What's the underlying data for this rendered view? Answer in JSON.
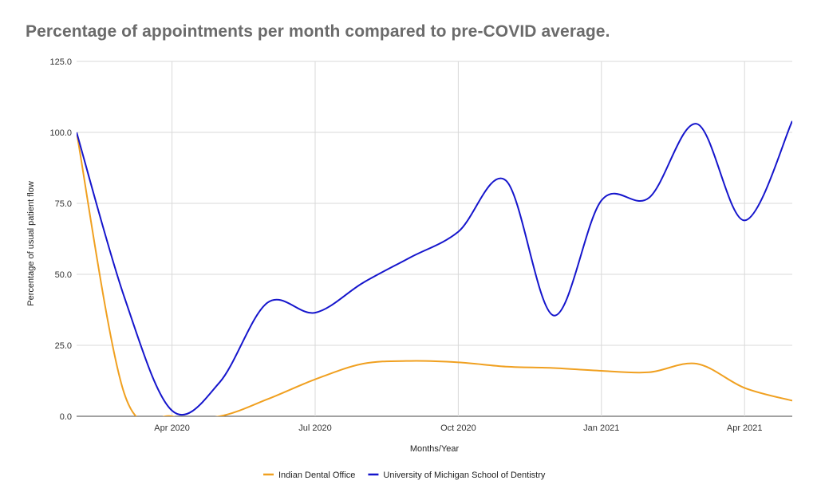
{
  "chart_data": {
    "type": "line",
    "title": "Percentage of appointments per month compared to pre-COVID average.",
    "xlabel": "Months/Year",
    "ylabel": "Percentage of usual patient flow",
    "ylim": [
      0,
      125
    ],
    "yticks": [
      "0.0",
      "25.0",
      "50.0",
      "75.0",
      "100.0",
      "125.0"
    ],
    "xticks": [
      {
        "x": "2020-04",
        "label": "Apr 2020"
      },
      {
        "x": "2020-07",
        "label": "Jul 2020"
      },
      {
        "x": "2020-10",
        "label": "Oct 2020"
      },
      {
        "x": "2021-01",
        "label": "Jan 2021"
      },
      {
        "x": "2021-04",
        "label": "Apr 2021"
      }
    ],
    "x": [
      "2020-02",
      "2020-03",
      "2020-04",
      "2020-05",
      "2020-06",
      "2020-07",
      "2020-08",
      "2020-09",
      "2020-10",
      "2020-11",
      "2020-12",
      "2021-01",
      "2021-02",
      "2021-03",
      "2021-04",
      "2021-05"
    ],
    "series": [
      {
        "name": "Indian Dental Office",
        "color": "#f0a020",
        "values": [
          100,
          8,
          0,
          0,
          6,
          13,
          18.5,
          19.5,
          19,
          17.5,
          17,
          16,
          15.5,
          18.5,
          10,
          5.5
        ]
      },
      {
        "name": "University of Michigan School of Dentistry",
        "color": "#1515cc",
        "values": [
          100,
          42,
          2,
          12,
          40,
          36.5,
          47,
          56,
          65,
          83,
          35.5,
          76,
          77,
          103,
          69,
          104
        ]
      }
    ],
    "grid": true,
    "legend": "bottom-center"
  }
}
